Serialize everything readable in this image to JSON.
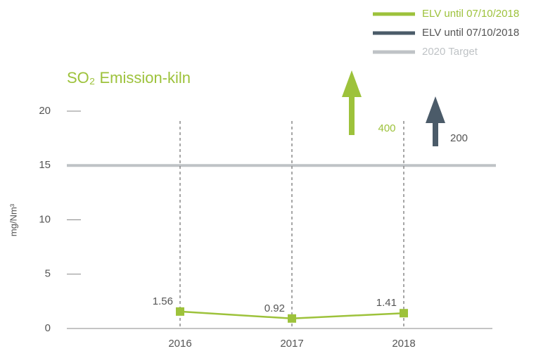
{
  "chart_data": {
    "type": "line",
    "title": "SO₂ Emission-kiln",
    "y_label": "mg/Nm³",
    "categories": [
      "2016",
      "2017",
      "2018"
    ],
    "values": [
      1.56,
      0.92,
      1.41
    ],
    "color": "#9dc23b",
    "ylim": [
      0,
      20
    ],
    "yticks": [
      0,
      5,
      10,
      15,
      20
    ],
    "reference_lines": [
      {
        "name": "2020 Target",
        "value": 15,
        "color": "#bfc3c6"
      }
    ],
    "limits": [
      {
        "name": "ELV until 07/10/2018",
        "value": 400,
        "color": "#9dc23b"
      },
      {
        "name": "ELV until 07/10/2018",
        "value": 200,
        "color": "#4b5b69"
      }
    ]
  }
}
